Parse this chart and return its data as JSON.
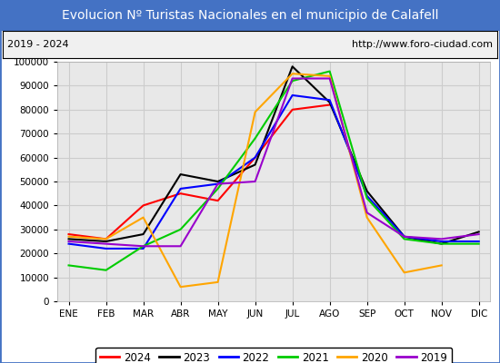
{
  "title": "Evolucion Nº Turistas Nacionales en el municipio de Calafell",
  "subtitle_left": "2019 - 2024",
  "subtitle_right": "http://www.foro-ciudad.com",
  "title_bg_color": "#4472c4",
  "title_text_color": "#ffffff",
  "months": [
    "ENE",
    "FEB",
    "MAR",
    "ABR",
    "MAY",
    "JUN",
    "JUL",
    "AGO",
    "SEP",
    "OCT",
    "NOV",
    "DIC"
  ],
  "ylim": [
    0,
    100000
  ],
  "yticks": [
    0,
    10000,
    20000,
    30000,
    40000,
    50000,
    60000,
    70000,
    80000,
    90000,
    100000
  ],
  "series": {
    "2024": {
      "values": [
        28000,
        26000,
        40000,
        45000,
        42000,
        60000,
        80000,
        82000,
        null,
        null,
        null,
        null
      ],
      "color": "#ff0000",
      "lw": 1.5
    },
    "2023": {
      "values": [
        26000,
        25000,
        28000,
        53000,
        50000,
        57000,
        98000,
        83000,
        46000,
        27000,
        24000,
        29000
      ],
      "color": "#000000",
      "lw": 1.5
    },
    "2022": {
      "values": [
        24000,
        22000,
        22000,
        47000,
        49000,
        60000,
        86000,
        84000,
        44000,
        27000,
        25000,
        25000
      ],
      "color": "#0000ff",
      "lw": 1.5
    },
    "2021": {
      "values": [
        15000,
        13000,
        23000,
        30000,
        47000,
        68000,
        92000,
        96000,
        43000,
        26000,
        24000,
        24000
      ],
      "color": "#00cc00",
      "lw": 1.5
    },
    "2020": {
      "values": [
        27000,
        26000,
        35000,
        6000,
        8000,
        79000,
        95000,
        94000,
        35000,
        12000,
        15000,
        null
      ],
      "color": "#ffa500",
      "lw": 1.5
    },
    "2019": {
      "values": [
        25000,
        24000,
        23000,
        23000,
        49000,
        50000,
        93000,
        93000,
        37000,
        27000,
        26000,
        28000
      ],
      "color": "#9900cc",
      "lw": 1.5
    }
  },
  "legend_order": [
    "2024",
    "2023",
    "2022",
    "2021",
    "2020",
    "2019"
  ],
  "grid_color": "#cccccc",
  "bg_plot_color": "#e8e8e8",
  "bg_fig_color": "#ffffff",
  "border_color": "#4472c4"
}
